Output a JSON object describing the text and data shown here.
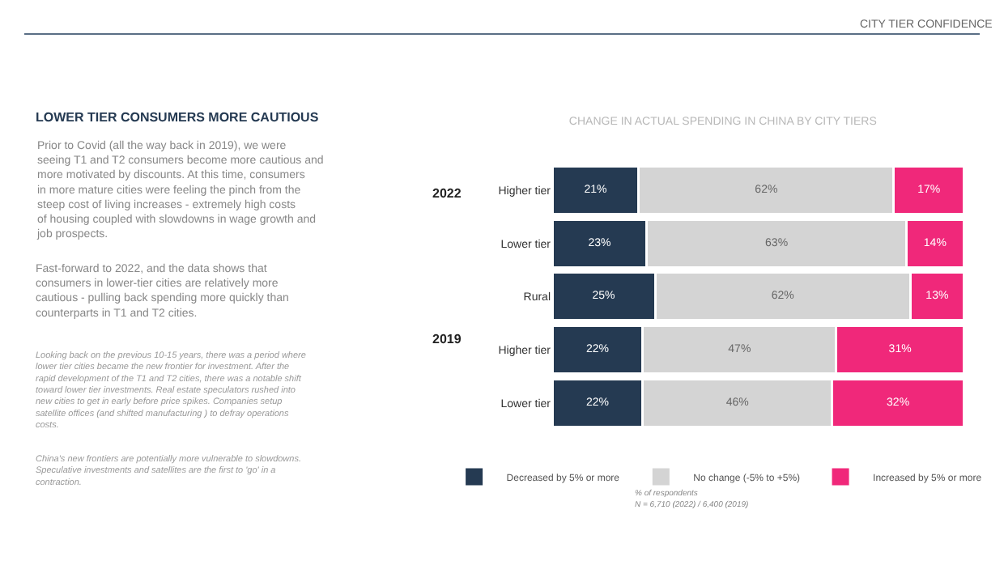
{
  "chart_data": {
    "type": "bar",
    "orientation": "horizontal",
    "stacked": true,
    "title": "CHANGE IN ACTUAL SPENDING IN CHINA BY CITY TIERS",
    "categories": [
      "Higher tier",
      "Lower tier",
      "Rural",
      "Higher tier",
      "Lower tier"
    ],
    "xlim": [
      0,
      100
    ],
    "tick_labels": "y",
    "legend": "bottom",
    "series": [
      {
        "name": "Decreased by 5% or more",
        "color": "#253a52",
        "values": [
          21,
          23,
          25,
          22,
          22
        ],
        "value_labels": [
          "21%",
          "23%",
          "25%",
          "22%",
          "22%"
        ]
      },
      {
        "name": "No change (-5% to +5%)",
        "color": "#d4d4d4",
        "values": [
          62,
          63,
          62,
          47,
          46
        ],
        "value_labels": [
          "62%",
          "63%",
          "62%",
          "47%",
          "46%"
        ]
      },
      {
        "name": "Increased by 5% or more",
        "color": "#f0287a",
        "values": [
          17,
          14,
          13,
          31,
          32
        ],
        "value_labels": [
          "17%",
          "14%",
          "13%",
          "31%",
          "32%"
        ]
      }
    ],
    "annotations": [
      "CITY TIER CONFIDENCE",
      "LOWER TIER CONSUMERS MORE CAUTIOUS",
      "Prior to Covid (all the way back in 2019), we were seeing T1 and T2 consumers become more cautious and more motivated by discounts. At this time, consumers in more mature cities were feeling the pinch from the steep cost of living increases - extremely high costs of housing coupled with slowdowns in wage growth and job prospects.",
      "Fast-forward to 2022, and the data shows that consumers in lower-tier cities are relatively more cautious - pulling back spending more quickly than counterparts in T1 and T2 cities.",
      "Looking back on the previous 10-15 years, there was a period where lower tier cities became the new frontier for investment. After the rapid development of the T1 and T2 cities, there was a notable shift toward lower tier investments. Real estate speculators rushed into new cities to get in early before price spikes. Companies setup satellite offices (and shifted manufacturing ) to defray operations costs.",
      "China's new frontiers are potentially more vulnerable to slowdowns. Speculative investments and satellites are the first to 'go' in a contraction.",
      "2022",
      "2019",
      "% of respondents",
      "N = 6,710 (2022) / 6,400 (2019)"
    ]
  }
}
